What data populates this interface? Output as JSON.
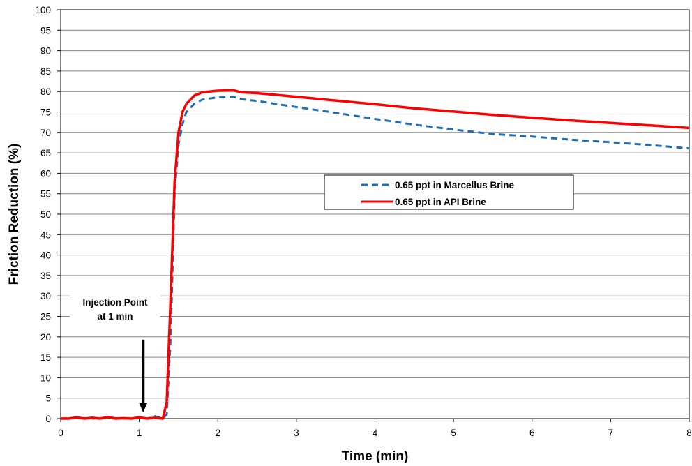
{
  "chart_data": {
    "type": "line",
    "title": "",
    "xlabel": "Time (min)",
    "ylabel": "Friction Reduction (%)",
    "xlim": [
      0,
      8
    ],
    "ylim": [
      0,
      100
    ],
    "x_ticks": [
      "0",
      "1",
      "2",
      "3",
      "4",
      "5",
      "6",
      "7",
      "8"
    ],
    "y_ticks": [
      "0",
      "5",
      "10",
      "15",
      "20",
      "25",
      "30",
      "35",
      "40",
      "45",
      "50",
      "55",
      "60",
      "65",
      "70",
      "75",
      "80",
      "85",
      "90",
      "95",
      "100"
    ],
    "grid": "horizontal",
    "legend_position": "center-right",
    "series": [
      {
        "name": "0.65 ppt in Marcellus Brine",
        "color": "#1f6fb4",
        "style": "dashed",
        "x": [
          0,
          0.2,
          0.4,
          0.6,
          0.8,
          1.0,
          1.1,
          1.2,
          1.3,
          1.35,
          1.4,
          1.45,
          1.5,
          1.55,
          1.6,
          1.7,
          1.8,
          2.0,
          2.2,
          2.3,
          2.5,
          3.0,
          3.5,
          4.0,
          4.5,
          5.0,
          5.5,
          6.0,
          6.5,
          7.0,
          7.5,
          8.0
        ],
        "y": [
          0,
          0.2,
          0,
          0.2,
          0,
          0.2,
          0,
          0.6,
          0,
          1,
          20,
          55,
          67,
          72,
          75,
          77,
          78,
          78.6,
          78.7,
          78.1,
          77.7,
          76.2,
          74.8,
          73.3,
          71.9,
          70.7,
          69.6,
          69.0,
          68.2,
          67.6,
          66.9,
          66.1
        ]
      },
      {
        "name": "0.65 ppt in API Brine",
        "color": "#ff0000",
        "style": "solid",
        "x": [
          0,
          0.1,
          0.2,
          0.3,
          0.4,
          0.5,
          0.6,
          0.7,
          0.8,
          0.9,
          1.0,
          1.1,
          1.2,
          1.3,
          1.35,
          1.4,
          1.45,
          1.5,
          1.55,
          1.6,
          1.7,
          1.8,
          2.0,
          2.2,
          2.3,
          2.5,
          3.0,
          3.5,
          4.0,
          4.5,
          5.0,
          5.5,
          6.0,
          6.5,
          7.0,
          7.5,
          8.0
        ],
        "y": [
          0,
          0,
          0.3,
          0,
          0.2,
          0,
          0.4,
          0,
          0.1,
          0,
          0.3,
          0,
          0.2,
          0,
          4,
          30,
          58,
          70,
          75,
          77,
          79,
          79.8,
          80.2,
          80.3,
          79.8,
          79.6,
          78.7,
          77.8,
          76.9,
          75.9,
          75.1,
          74.3,
          73.6,
          72.9,
          72.3,
          71.7,
          71.1
        ]
      }
    ],
    "annotations": [
      {
        "line1": "Injection Point",
        "line2": "at 1 min",
        "x": 1.05,
        "arrow_from_y": 20,
        "arrow_to_y": 1.5
      }
    ]
  }
}
